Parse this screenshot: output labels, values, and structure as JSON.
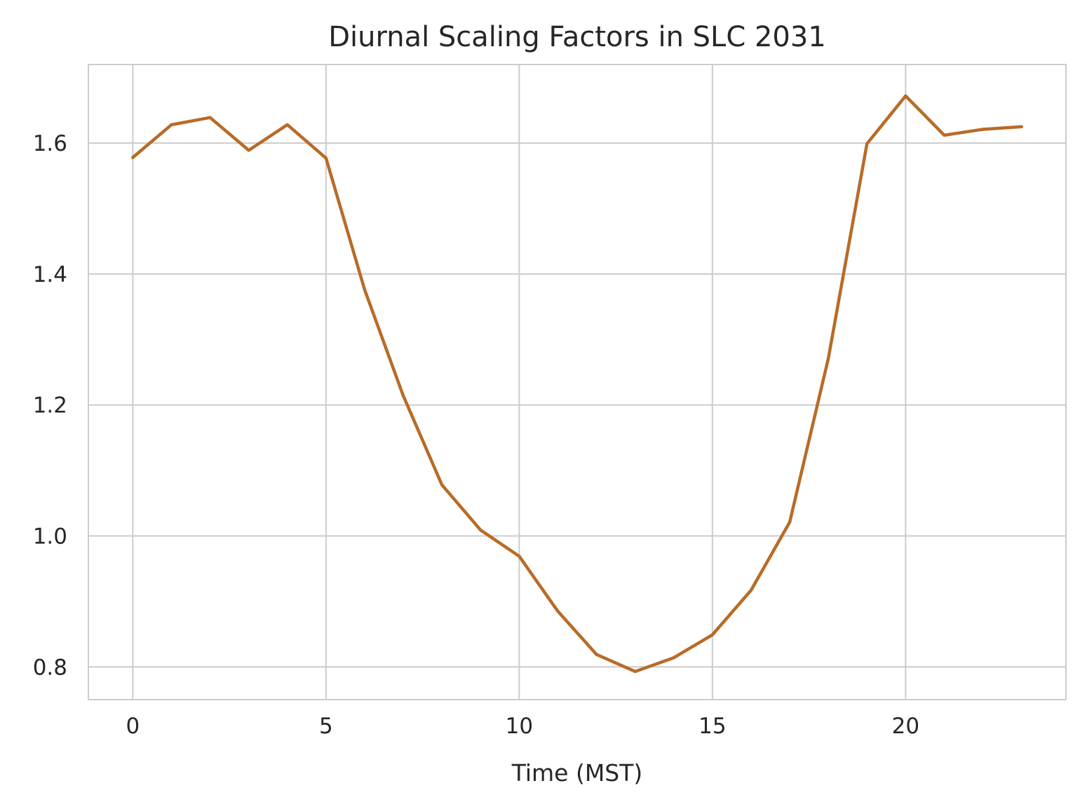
{
  "chart_data": {
    "type": "line",
    "title": "Diurnal Scaling Factors in SLC 2031",
    "xlabel": "Time (MST)",
    "ylabel": "",
    "xlim": [
      -1.15,
      24.15
    ],
    "ylim": [
      0.75,
      1.72
    ],
    "x_ticks": [
      0,
      5,
      10,
      15,
      20
    ],
    "y_ticks": [
      0.8,
      1.0,
      1.2,
      1.4,
      1.6
    ],
    "x_tick_labels": [
      "0",
      "5",
      "10",
      "15",
      "20"
    ],
    "y_tick_labels": [
      "0.8",
      "1.0",
      "1.2",
      "1.4",
      "1.6"
    ],
    "grid": true,
    "series": [
      {
        "color": "#b86b27",
        "x": [
          0,
          1,
          2,
          3,
          4,
          5,
          6,
          7,
          8,
          9,
          10,
          11,
          12,
          13,
          14,
          15,
          16,
          17,
          18,
          19,
          20,
          21,
          22,
          23
        ],
        "values": [
          1.578,
          1.628,
          1.639,
          1.589,
          1.628,
          1.577,
          1.376,
          1.214,
          1.078,
          1.009,
          0.969,
          0.885,
          0.819,
          0.793,
          0.814,
          0.849,
          0.917,
          1.021,
          1.271,
          1.599,
          1.672,
          1.612,
          1.621,
          1.625
        ]
      }
    ]
  }
}
